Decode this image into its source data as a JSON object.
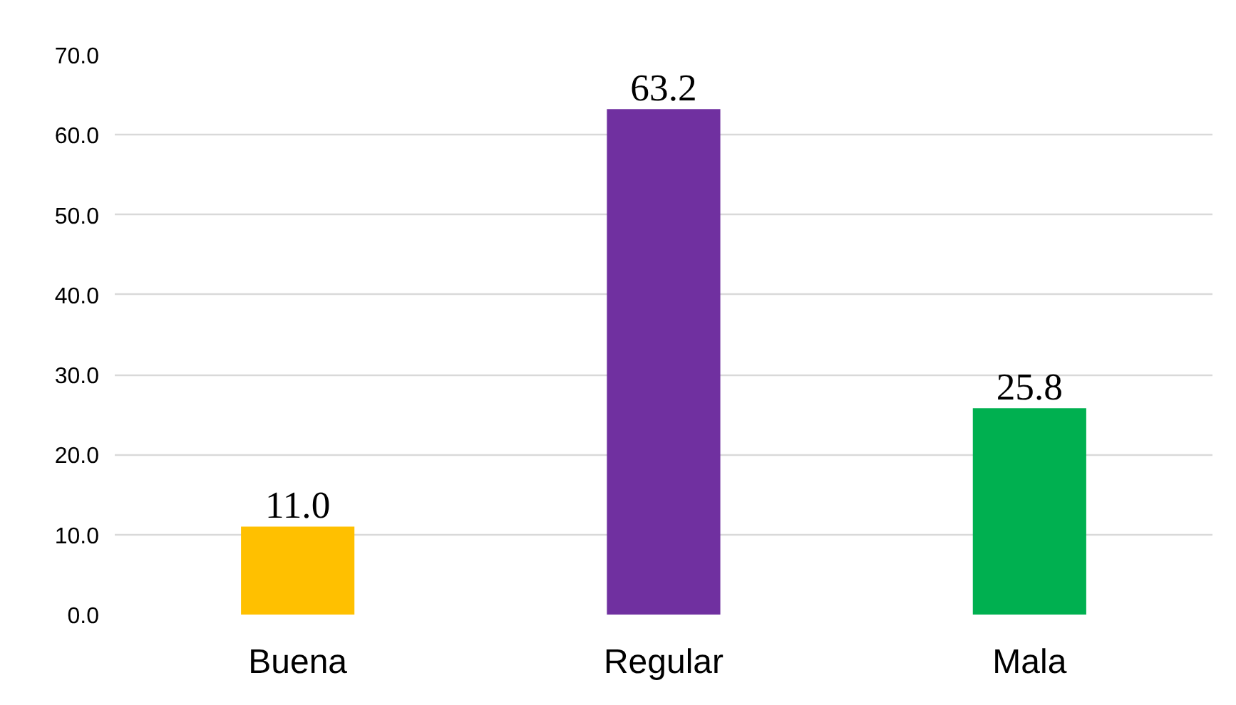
{
  "chart_data": {
    "type": "bar",
    "categories": [
      "Buena",
      "Regular",
      "Mala"
    ],
    "values": [
      11.0,
      63.2,
      25.8
    ],
    "colors": [
      "#ffc000",
      "#7030a0",
      "#00b050"
    ],
    "value_labels": [
      "11.0",
      "63.2",
      "25.8"
    ],
    "ylim": [
      0,
      70
    ],
    "yticks": [
      {
        "value": 0,
        "label": "0.0"
      },
      {
        "value": 10,
        "label": "10.0"
      },
      {
        "value": 20,
        "label": "20.0"
      },
      {
        "value": 30,
        "label": "30.0"
      },
      {
        "value": 40,
        "label": "40.0"
      },
      {
        "value": 50,
        "label": "50.0"
      },
      {
        "value": 60,
        "label": "60.0"
      },
      {
        "value": 70,
        "label": "70.0"
      }
    ],
    "grid": "y"
  }
}
